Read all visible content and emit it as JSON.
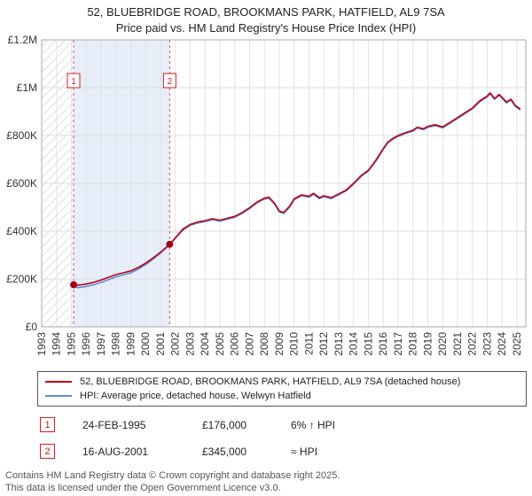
{
  "title": {
    "line1": "52, BLUEBRIDGE ROAD, BROOKMANS PARK, HATFIELD, AL9 7SA",
    "line2": "Price paid vs. HM Land Registry's House Price Index (HPI)"
  },
  "chart_data": {
    "type": "line",
    "x_range": [
      1993,
      2025.6
    ],
    "ylim": [
      0,
      1200000
    ],
    "y_ticks": [
      {
        "value": 0,
        "label": "£0"
      },
      {
        "value": 200000,
        "label": "£200K"
      },
      {
        "value": 400000,
        "label": "£400K"
      },
      {
        "value": 600000,
        "label": "£600K"
      },
      {
        "value": 800000,
        "label": "£800K"
      },
      {
        "value": 1000000,
        "label": "£1M"
      },
      {
        "value": 1200000,
        "label": "£1.2M"
      }
    ],
    "x_ticks": [
      1993,
      1994,
      1995,
      1996,
      1997,
      1998,
      1999,
      2000,
      2001,
      2002,
      2003,
      2004,
      2005,
      2006,
      2007,
      2008,
      2009,
      2010,
      2011,
      2012,
      2013,
      2014,
      2015,
      2016,
      2017,
      2018,
      2019,
      2020,
      2021,
      2022,
      2023,
      2024,
      2025
    ],
    "grid": true,
    "hatched_region": {
      "from": 1993,
      "to": 1995.15
    },
    "shaded_region": {
      "from": 1995.15,
      "to": 2001.62,
      "color": "#e7eefa"
    },
    "marker_line_color": "#e05555",
    "dot_color": "#a50016",
    "series": [
      {
        "name": "property-price",
        "label": "52, BLUEBRIDGE ROAD, BROOKMANS PARK, HATFIELD, AL9 7SA (detached house)",
        "color": "#bb0018",
        "x": [
          1995.15,
          1995.5,
          1996,
          1996.5,
          1997,
          1997.5,
          1998,
          1998.5,
          1999,
          1999.5,
          2000,
          2000.5,
          2001,
          2001.62,
          2002,
          2002.5,
          2003,
          2003.5,
          2004,
          2004.5,
          2005,
          2005.5,
          2006,
          2006.5,
          2007,
          2007.5,
          2008,
          2008.3,
          2008.7,
          2009,
          2009.3,
          2009.7,
          2010,
          2010.5,
          2011,
          2011.3,
          2011.7,
          2012,
          2012.5,
          2013,
          2013.5,
          2014,
          2014.5,
          2015,
          2015.5,
          2016,
          2016.3,
          2016.7,
          2017,
          2017.5,
          2018,
          2018.3,
          2018.7,
          2019,
          2019.5,
          2020,
          2020.5,
          2021,
          2021.5,
          2022,
          2022.5,
          2023,
          2023.2,
          2023.5,
          2023.8,
          2024,
          2024.3,
          2024.6,
          2024.9,
          2025.2
        ],
        "values": [
          176000,
          174000,
          179000,
          186000,
          196000,
          207000,
          218000,
          226000,
          234000,
          248000,
          266000,
          288000,
          312000,
          345000,
          372000,
          408000,
          428000,
          438000,
          444000,
          452000,
          446000,
          454000,
          462000,
          478000,
          498000,
          522000,
          538000,
          542000,
          515000,
          484000,
          478000,
          505000,
          535000,
          552000,
          546000,
          558000,
          540000,
          548000,
          540000,
          556000,
          572000,
          600000,
          632000,
          655000,
          696000,
          745000,
          772000,
          790000,
          800000,
          812000,
          822000,
          835000,
          828000,
          838000,
          845000,
          836000,
          855000,
          875000,
          895000,
          915000,
          945000,
          965000,
          978000,
          955000,
          972000,
          960000,
          940000,
          952000,
          925000,
          912000
        ]
      },
      {
        "name": "hpi-average",
        "label": "HPI: Average price, detached house, Welwyn Hatfield",
        "color": "#5b8fd4",
        "x": [
          1995.15,
          1995.5,
          1996,
          1996.5,
          1997,
          1997.5,
          1998,
          1998.5,
          1999,
          1999.5,
          2000,
          2000.5,
          2001,
          2001.62,
          2002,
          2002.5,
          2003,
          2003.5,
          2004,
          2004.5,
          2005,
          2005.5,
          2006,
          2006.5,
          2007,
          2007.5,
          2008,
          2008.3,
          2008.7,
          2009,
          2009.3,
          2009.7,
          2010,
          2010.5,
          2011,
          2011.3,
          2011.7,
          2012,
          2012.5,
          2013,
          2013.5,
          2014,
          2014.5,
          2015,
          2015.5,
          2016,
          2016.3,
          2016.7,
          2017,
          2017.5,
          2018,
          2018.3,
          2018.7,
          2019,
          2019.5,
          2020,
          2020.5,
          2021,
          2021.5,
          2022,
          2022.5,
          2023,
          2023.2,
          2023.5,
          2023.8,
          2024,
          2024.3,
          2024.6,
          2024.9,
          2025.2
        ],
        "values": [
          166000,
          164000,
          169000,
          176000,
          186000,
          197000,
          209000,
          217000,
          226000,
          241000,
          260000,
          283000,
          308000,
          345000,
          370000,
          404000,
          424000,
          434000,
          440000,
          448000,
          442000,
          450000,
          458000,
          474000,
          494000,
          518000,
          534000,
          538000,
          511000,
          480000,
          474000,
          501000,
          531000,
          548000,
          542000,
          554000,
          536000,
          544000,
          536000,
          552000,
          568000,
          596000,
          628000,
          651000,
          692000,
          741000,
          768000,
          786000,
          796000,
          808000,
          818000,
          831000,
          824000,
          834000,
          841000,
          832000,
          851000,
          871000,
          891000,
          911000,
          941000,
          961000,
          974000,
          951000,
          968000,
          956000,
          936000,
          948000,
          921000,
          908000
        ]
      }
    ],
    "sale_markers": [
      {
        "label": "1",
        "x": 1995.15,
        "value": 176000
      },
      {
        "label": "2",
        "x": 2001.62,
        "value": 345000
      }
    ]
  },
  "legend": {
    "items": [
      {
        "label": "52, BLUEBRIDGE ROAD, BROOKMANS PARK, HATFIELD, AL9 7SA (detached house)",
        "color": "#bb0018"
      },
      {
        "label": "HPI: Average price, detached house, Welwyn Hatfield",
        "color": "#5b8fd4"
      }
    ]
  },
  "transactions": [
    {
      "num": "1",
      "date": "24-FEB-1995",
      "price": "£176,000",
      "hpi": "6% ↑ HPI"
    },
    {
      "num": "2",
      "date": "16-AUG-2001",
      "price": "£345,000",
      "hpi": "≈ HPI"
    }
  ],
  "footer": {
    "line1": "Contains HM Land Registry data © Crown copyright and database right 2025.",
    "line2": "This data is licensed under the Open Government Licence v3.0."
  }
}
